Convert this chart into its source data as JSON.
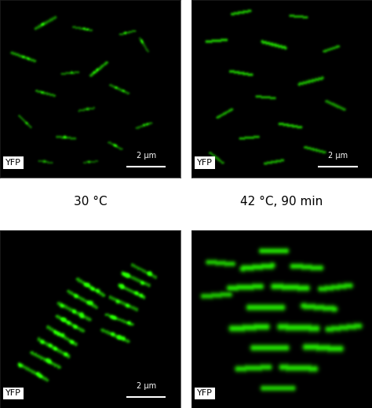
{
  "figsize": [
    4.74,
    5.19
  ],
  "dpi": 100,
  "background_color": "#ffffff",
  "labels": {
    "bottom_left": "30 °C",
    "bottom_right": "42 °C, 90 min"
  },
  "yfp_label": "YFP",
  "scalebar_label": "2 μm",
  "label_fontsize": 11,
  "yfp_fontsize": 8,
  "scalebar_fontsize": 7
}
